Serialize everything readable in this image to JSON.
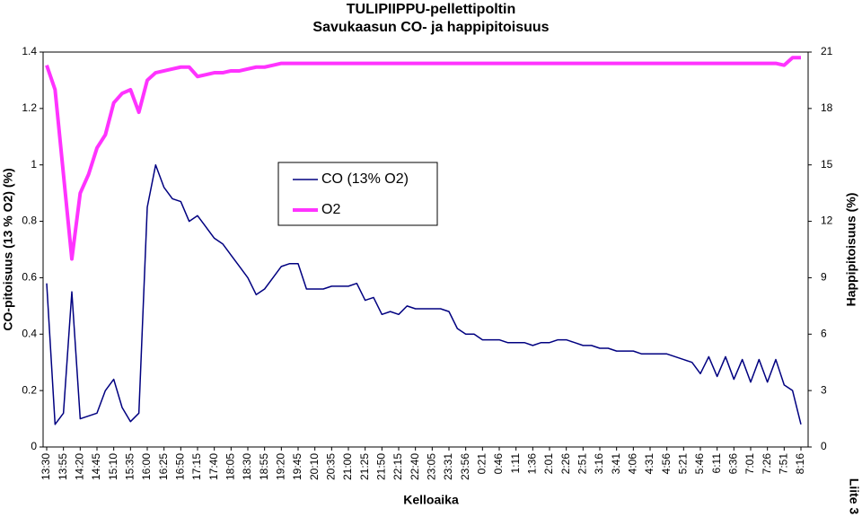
{
  "chart_data": {
    "type": "line",
    "title": "TULIPIIPPU-pellettipoltin",
    "subtitle": "Savukaasun CO- ja happipitoisuus",
    "x_label": "Kelloaika",
    "y_label": "CO-pitoisuus (13 % O2) (%)",
    "y2_label": "Happipitoisuus (%)",
    "annotation": "Liite 3",
    "categories": [
      "13:30",
      null,
      "13:55",
      null,
      "14:20",
      null,
      "14:45",
      null,
      "15:10",
      null,
      "15:35",
      null,
      "16:00",
      null,
      "16:25",
      null,
      "16:50",
      null,
      "17:15",
      null,
      "17:40",
      null,
      "18:05",
      null,
      "18:30",
      null,
      "18:55",
      null,
      "19:20",
      null,
      "19:45",
      null,
      "20:10",
      null,
      "20:35",
      null,
      "21:00",
      null,
      "21:25",
      null,
      "21:50",
      null,
      "22:15",
      null,
      "22:40",
      null,
      "23:05",
      null,
      "23:31",
      null,
      "23:56",
      null,
      "0:21",
      null,
      "0:46",
      null,
      "1:11",
      null,
      "1:36",
      null,
      "2:01",
      null,
      "2:26",
      null,
      "2:51",
      null,
      "3:16",
      null,
      "3:41",
      null,
      "4:06",
      null,
      "4:31",
      null,
      "4:56",
      null,
      "5:21",
      null,
      "5:46",
      null,
      "6:11",
      null,
      "6:36",
      null,
      "7:01",
      null,
      "7:26",
      null,
      "7:51",
      null,
      "8:16"
    ],
    "series": [
      {
        "name": "CO (13% O2)",
        "color": "#000080",
        "axis": "y",
        "values": [
          0.58,
          0.08,
          0.12,
          0.55,
          0.1,
          0.11,
          0.12,
          0.2,
          0.24,
          0.14,
          0.09,
          0.12,
          0.85,
          1.0,
          0.92,
          0.88,
          0.87,
          0.8,
          0.82,
          0.78,
          0.74,
          0.72,
          0.68,
          0.64,
          0.6,
          0.54,
          0.56,
          0.6,
          0.64,
          0.65,
          0.65,
          0.56,
          0.56,
          0.56,
          0.57,
          0.57,
          0.57,
          0.58,
          0.52,
          0.53,
          0.47,
          0.48,
          0.47,
          0.5,
          0.49,
          0.49,
          0.49,
          0.49,
          0.48,
          0.42,
          0.4,
          0.4,
          0.38,
          0.38,
          0.38,
          0.37,
          0.37,
          0.37,
          0.36,
          0.37,
          0.37,
          0.38,
          0.38,
          0.37,
          0.36,
          0.36,
          0.35,
          0.35,
          0.34,
          0.34,
          0.34,
          0.33,
          0.33,
          0.33,
          0.33,
          0.32,
          0.31,
          0.3,
          0.26,
          0.32,
          0.25,
          0.32,
          0.24,
          0.31,
          0.23,
          0.31,
          0.23,
          0.31,
          0.22,
          0.2,
          0.08
        ]
      },
      {
        "name": "O2",
        "color": "#ff33ff",
        "axis": "y2",
        "values": [
          20.3,
          19.0,
          14.5,
          10,
          13.5,
          14.5,
          15.9,
          16.6,
          18.3,
          18.8,
          19.0,
          17.8,
          19.5,
          19.9,
          20.0,
          20.1,
          20.2,
          20.2,
          19.7,
          19.8,
          19.9,
          19.9,
          20.0,
          20.0,
          20.1,
          20.2,
          20.2,
          20.3,
          20.4,
          20.4,
          20.4,
          20.4,
          20.4,
          20.4,
          20.4,
          20.4,
          20.4,
          20.4,
          20.4,
          20.4,
          20.4,
          20.4,
          20.4,
          20.4,
          20.4,
          20.4,
          20.4,
          20.4,
          20.4,
          20.4,
          20.4,
          20.4,
          20.4,
          20.4,
          20.4,
          20.4,
          20.4,
          20.4,
          20.4,
          20.4,
          20.4,
          20.4,
          20.4,
          20.4,
          20.4,
          20.4,
          20.4,
          20.4,
          20.4,
          20.4,
          20.4,
          20.4,
          20.4,
          20.4,
          20.4,
          20.4,
          20.4,
          20.4,
          20.4,
          20.4,
          20.4,
          20.4,
          20.4,
          20.4,
          20.4,
          20.4,
          20.4,
          20.4,
          20.3,
          20.7,
          20.7
        ]
      }
    ],
    "ylim": [
      0,
      1.4
    ],
    "yticks": [
      0,
      0.2,
      0.4,
      0.6,
      0.8,
      1,
      1.2,
      1.4
    ],
    "y2lim": [
      0,
      21
    ],
    "y2ticks": [
      0,
      3,
      6,
      9,
      12,
      15,
      18,
      21
    ]
  }
}
